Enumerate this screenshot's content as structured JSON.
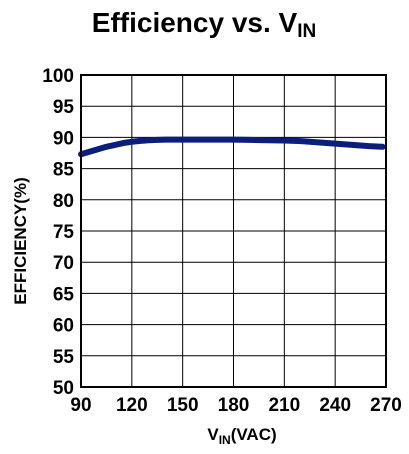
{
  "chart_data": {
    "type": "line",
    "title": {
      "main": "Efficiency vs. V",
      "sub": "IN"
    },
    "xlabel": {
      "main": "V",
      "sub": "IN",
      "rest": "(VAC)"
    },
    "ylabel": "EFFICIENCY(%)",
    "xlim": [
      90,
      270
    ],
    "ylim": [
      50,
      100
    ],
    "x_ticks": [
      90,
      120,
      150,
      180,
      210,
      240,
      270
    ],
    "y_ticks": [
      50,
      55,
      60,
      65,
      70,
      75,
      80,
      85,
      90,
      95,
      100
    ],
    "grid": true,
    "legend": "none",
    "colors": {
      "series": "#0b1f7a",
      "axis": "#000000",
      "grid": "#000000"
    },
    "series": [
      {
        "x": [
          90,
          95,
          100,
          105,
          110,
          115,
          120,
          125,
          130,
          135,
          140,
          145,
          150,
          160,
          170,
          180,
          190,
          200,
          210,
          220,
          230,
          240,
          250,
          260,
          268
        ],
        "values": [
          87.3,
          87.7,
          88.1,
          88.5,
          88.8,
          89.1,
          89.3,
          89.45,
          89.55,
          89.6,
          89.65,
          89.65,
          89.65,
          89.65,
          89.65,
          89.65,
          89.6,
          89.55,
          89.5,
          89.4,
          89.2,
          89.0,
          88.8,
          88.6,
          88.5
        ]
      }
    ]
  }
}
